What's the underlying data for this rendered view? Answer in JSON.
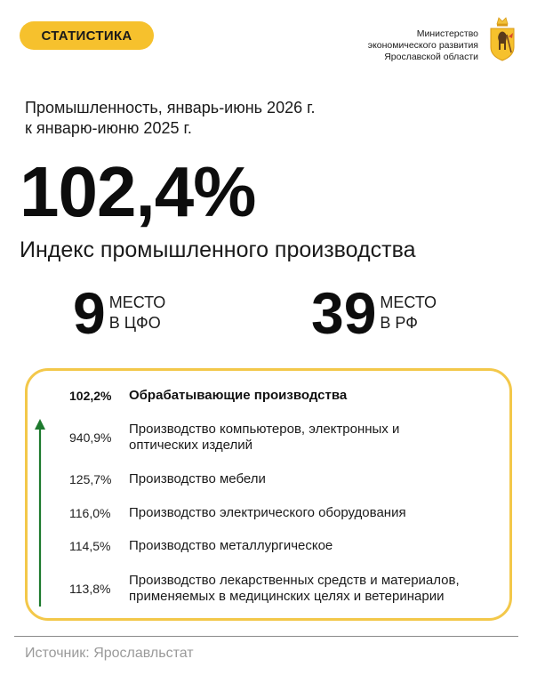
{
  "header": {
    "badge": "СТАТИСТИКА",
    "ministry_line1": "Министерство",
    "ministry_line2": "экономического развития",
    "ministry_line3": "Ярославской области",
    "crest_icon": "yaroslavl-coat-of-arms-icon"
  },
  "headline": {
    "subtitle_line1": "Промышленность, январь-июнь 2026 г.",
    "subtitle_line2": "к январю-июню 2025 г.",
    "index_value": "102,4%",
    "index_label": "Индекс промышленного производства"
  },
  "ranks": [
    {
      "number": "9",
      "line1": "МЕСТО",
      "line2": "В ЦФО"
    },
    {
      "number": "39",
      "line1": "МЕСТО",
      "line2": "В РФ"
    }
  ],
  "industries": {
    "arrow_icon": "up-arrow-icon",
    "arrow_color": "#1e7a2e",
    "accent_color": "#f6c12d",
    "items": [
      {
        "value": "102,2%",
        "line1": "Обрабатывающие производства",
        "line2": ""
      },
      {
        "value": "940,9%",
        "line1": "Производство компьютеров, электронных и",
        "line2": "оптических изделий"
      },
      {
        "value": "125,7%",
        "line1": "Производство мебели",
        "line2": ""
      },
      {
        "value": "116,0%",
        "line1": "Производство электрического оборудования",
        "line2": ""
      },
      {
        "value": "114,5%",
        "line1": "Производство металлургическое",
        "line2": ""
      },
      {
        "value": "113,8%",
        "line1": "Производство лекарственных средств и материалов,",
        "line2": "применяемых в медицинских целях и ветеринарии"
      }
    ]
  },
  "footer": {
    "source": "Источник: Ярославльстат"
  }
}
